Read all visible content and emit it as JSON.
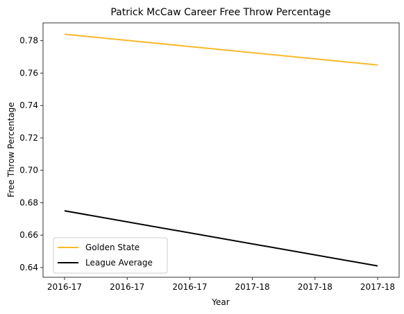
{
  "chart_data": {
    "type": "line",
    "title": "Patrick McCaw Career Free Throw Percentage",
    "xlabel": "Year",
    "ylabel": "Free Throw Percentage",
    "x_tick_labels": [
      "2016-17",
      "2016-17",
      "2016-17",
      "2017-18",
      "2017-18",
      "2017-18"
    ],
    "x_endpoints": [
      "2016-17",
      "2017-18"
    ],
    "ylim": [
      0.634,
      0.791
    ],
    "y_ticks": [
      0.64,
      0.66,
      0.68,
      0.7,
      0.72,
      0.74,
      0.76,
      0.78
    ],
    "y_tick_labels": [
      "0.64",
      "0.66",
      "0.68",
      "0.70",
      "0.72",
      "0.74",
      "0.76",
      "0.78"
    ],
    "grid": false,
    "legend_position": "lower-left",
    "series": [
      {
        "name": "Golden State",
        "color": "#fbb829",
        "values": [
          0.784,
          0.765
        ]
      },
      {
        "name": "League Average",
        "color": "#000000",
        "values": [
          0.675,
          0.641
        ]
      }
    ]
  }
}
